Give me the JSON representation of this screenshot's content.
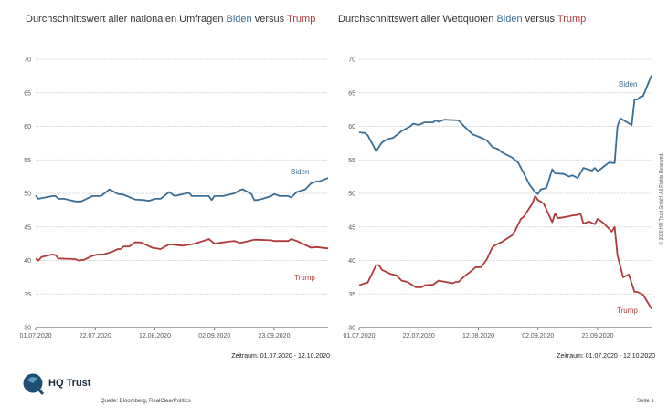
{
  "colors": {
    "biden": "#3b6e96",
    "trump": "#b03a3a",
    "grid": "#c8c8c8",
    "axis": "#555555"
  },
  "chart_data": [
    {
      "type": "line",
      "title": {
        "prefix": "Durchschnittswert aller nationalen Umfragen ",
        "biden": "Biden",
        "mid": " versus ",
        "trump": "Trump"
      },
      "ylim": [
        30,
        70
      ],
      "yticks": [
        30,
        35,
        40,
        45,
        50,
        55,
        60,
        65,
        70
      ],
      "xlim": [
        "2020-07-01",
        "2020-10-12"
      ],
      "xticks": [
        "01.07.2020",
        "22.07.2020",
        "12.08.2020",
        "02.09.2020",
        "23.09.2020"
      ],
      "grid": true,
      "period": "Zeitraum: 01.07.2020 - 12.10.2020",
      "series": [
        {
          "name": "Biden",
          "color": "#3b6e96",
          "points": [
            [
              "2020-07-01",
              49.7
            ],
            [
              "2020-07-02",
              49.2
            ],
            [
              "2020-07-07",
              49.6
            ],
            [
              "2020-07-08",
              49.6
            ],
            [
              "2020-07-09",
              49.2
            ],
            [
              "2020-07-11",
              49.2
            ],
            [
              "2020-07-15",
              48.8
            ],
            [
              "2020-07-17",
              48.8
            ],
            [
              "2020-07-21",
              49.6
            ],
            [
              "2020-07-24",
              49.6
            ],
            [
              "2020-07-27",
              50.6
            ],
            [
              "2020-07-30",
              49.9
            ],
            [
              "2020-08-01",
              49.8
            ],
            [
              "2020-08-05",
              49.1
            ],
            [
              "2020-08-08",
              49.0
            ],
            [
              "2020-08-10",
              48.9
            ],
            [
              "2020-08-12",
              49.2
            ],
            [
              "2020-08-14",
              49.2
            ],
            [
              "2020-08-17",
              50.2
            ],
            [
              "2020-08-19",
              49.6
            ],
            [
              "2020-08-24",
              50.1
            ],
            [
              "2020-08-25",
              49.6
            ],
            [
              "2020-08-31",
              49.6
            ],
            [
              "2020-09-01",
              49.0
            ],
            [
              "2020-09-02",
              49.6
            ],
            [
              "2020-09-05",
              49.6
            ],
            [
              "2020-09-09",
              50.0
            ],
            [
              "2020-09-11",
              50.5
            ],
            [
              "2020-09-12",
              50.6
            ],
            [
              "2020-09-15",
              49.9
            ],
            [
              "2020-09-16",
              49.0
            ],
            [
              "2020-09-17",
              49.0
            ],
            [
              "2020-09-19",
              49.2
            ],
            [
              "2020-09-22",
              49.6
            ],
            [
              "2020-09-23",
              49.9
            ],
            [
              "2020-09-25",
              49.6
            ],
            [
              "2020-09-28",
              49.6
            ],
            [
              "2020-09-29",
              49.4
            ],
            [
              "2020-10-01",
              50.2
            ],
            [
              "2020-10-04",
              50.6
            ],
            [
              "2020-10-06",
              51.5
            ],
            [
              "2020-10-08",
              51.8
            ],
            [
              "2020-10-09",
              51.8
            ],
            [
              "2020-10-12",
              52.3
            ]
          ]
        },
        {
          "name": "Trump",
          "color": "#b03a3a",
          "points": [
            [
              "2020-07-01",
              40.3
            ],
            [
              "2020-07-02",
              40.0
            ],
            [
              "2020-07-03",
              40.5
            ],
            [
              "2020-07-07",
              40.9
            ],
            [
              "2020-07-08",
              40.8
            ],
            [
              "2020-07-09",
              40.3
            ],
            [
              "2020-07-15",
              40.2
            ],
            [
              "2020-07-16",
              40.0
            ],
            [
              "2020-07-18",
              40.1
            ],
            [
              "2020-07-21",
              40.7
            ],
            [
              "2020-07-23",
              40.9
            ],
            [
              "2020-07-25",
              40.9
            ],
            [
              "2020-07-28",
              41.3
            ],
            [
              "2020-07-30",
              41.7
            ],
            [
              "2020-07-31",
              41.7
            ],
            [
              "2020-08-01",
              42.1
            ],
            [
              "2020-08-03",
              42.1
            ],
            [
              "2020-08-05",
              42.7
            ],
            [
              "2020-08-07",
              42.7
            ],
            [
              "2020-08-09",
              42.3
            ],
            [
              "2020-08-11",
              41.9
            ],
            [
              "2020-08-14",
              41.7
            ],
            [
              "2020-08-17",
              42.4
            ],
            [
              "2020-08-22",
              42.2
            ],
            [
              "2020-08-26",
              42.5
            ],
            [
              "2020-08-29",
              42.9
            ],
            [
              "2020-08-31",
              43.2
            ],
            [
              "2020-09-02",
              42.5
            ],
            [
              "2020-09-05",
              42.7
            ],
            [
              "2020-09-07",
              42.8
            ],
            [
              "2020-09-09",
              42.9
            ],
            [
              "2020-09-11",
              42.6
            ],
            [
              "2020-09-14",
              42.9
            ],
            [
              "2020-09-16",
              43.1
            ],
            [
              "2020-09-22",
              43.0
            ],
            [
              "2020-09-23",
              42.9
            ],
            [
              "2020-09-28",
              42.9
            ],
            [
              "2020-09-29",
              43.2
            ],
            [
              "2020-10-01",
              42.9
            ],
            [
              "2020-10-04",
              42.3
            ],
            [
              "2020-10-06",
              41.9
            ],
            [
              "2020-10-08",
              42.0
            ],
            [
              "2020-10-12",
              41.8
            ]
          ]
        }
      ]
    },
    {
      "type": "line",
      "title": {
        "prefix": "Durchschnittswert aller Wettquoten ",
        "biden": "Biden",
        "mid": " versus ",
        "trump": "Trump"
      },
      "ylim": [
        30,
        70
      ],
      "yticks": [
        30,
        35,
        40,
        45,
        50,
        55,
        60,
        65,
        70
      ],
      "xlim": [
        "2020-07-01",
        "2020-10-12"
      ],
      "xticks": [
        "01.07.2020",
        "22.07.2020",
        "12.08.2020",
        "02.09.2020",
        "23.09.2020"
      ],
      "grid": true,
      "period": "Zeitraum: 01.07.2020 - 12.10.2020",
      "series": [
        {
          "name": "Biden",
          "color": "#3b6e96",
          "points": [
            [
              "2020-07-01",
              59.1
            ],
            [
              "2020-07-03",
              59.0
            ],
            [
              "2020-07-04",
              58.7
            ],
            [
              "2020-07-07",
              56.3
            ],
            [
              "2020-07-09",
              57.6
            ],
            [
              "2020-07-11",
              58.1
            ],
            [
              "2020-07-13",
              58.3
            ],
            [
              "2020-07-16",
              59.3
            ],
            [
              "2020-07-19",
              60.0
            ],
            [
              "2020-07-20",
              60.4
            ],
            [
              "2020-07-22",
              60.2
            ],
            [
              "2020-07-24",
              60.6
            ],
            [
              "2020-07-27",
              60.6
            ],
            [
              "2020-07-28",
              60.9
            ],
            [
              "2020-07-29",
              60.7
            ],
            [
              "2020-07-31",
              61.0
            ],
            [
              "2020-08-05",
              60.9
            ],
            [
              "2020-08-07",
              60.0
            ],
            [
              "2020-08-10",
              58.8
            ],
            [
              "2020-08-13",
              58.3
            ],
            [
              "2020-08-15",
              57.9
            ],
            [
              "2020-08-17",
              56.9
            ],
            [
              "2020-08-19",
              56.6
            ],
            [
              "2020-08-20",
              56.2
            ],
            [
              "2020-08-24",
              55.3
            ],
            [
              "2020-08-26",
              54.6
            ],
            [
              "2020-08-28",
              53.0
            ],
            [
              "2020-08-30",
              51.3
            ],
            [
              "2020-09-01",
              50.2
            ],
            [
              "2020-09-02",
              49.9
            ],
            [
              "2020-09-03",
              50.6
            ],
            [
              "2020-09-05",
              50.8
            ],
            [
              "2020-09-07",
              53.6
            ],
            [
              "2020-09-08",
              53.0
            ],
            [
              "2020-09-11",
              52.9
            ],
            [
              "2020-09-13",
              52.5
            ],
            [
              "2020-09-14",
              52.7
            ],
            [
              "2020-09-15",
              52.5
            ],
            [
              "2020-09-16",
              52.3
            ],
            [
              "2020-09-18",
              53.8
            ],
            [
              "2020-09-21",
              53.4
            ],
            [
              "2020-09-22",
              53.8
            ],
            [
              "2020-09-23",
              53.3
            ],
            [
              "2020-09-24",
              53.6
            ],
            [
              "2020-09-27",
              54.6
            ],
            [
              "2020-09-29",
              54.5
            ],
            [
              "2020-09-30",
              60.0
            ],
            [
              "2020-10-01",
              61.2
            ],
            [
              "2020-10-05",
              60.2
            ],
            [
              "2020-10-06",
              64.0
            ],
            [
              "2020-10-07",
              64.0
            ],
            [
              "2020-10-08",
              64.4
            ],
            [
              "2020-10-09",
              64.5
            ],
            [
              "2020-10-12",
              67.6
            ]
          ]
        },
        {
          "name": "Trump",
          "color": "#b03a3a",
          "points": [
            [
              "2020-07-01",
              36.3
            ],
            [
              "2020-07-03",
              36.6
            ],
            [
              "2020-07-04",
              36.7
            ],
            [
              "2020-07-07",
              39.3
            ],
            [
              "2020-07-08",
              39.3
            ],
            [
              "2020-07-09",
              38.6
            ],
            [
              "2020-07-12",
              38.0
            ],
            [
              "2020-07-14",
              37.8
            ],
            [
              "2020-07-16",
              37.0
            ],
            [
              "2020-07-18",
              36.8
            ],
            [
              "2020-07-21",
              36.0
            ],
            [
              "2020-07-23",
              36.0
            ],
            [
              "2020-07-24",
              36.3
            ],
            [
              "2020-07-27",
              36.4
            ],
            [
              "2020-07-29",
              37.0
            ],
            [
              "2020-08-03",
              36.6
            ],
            [
              "2020-08-04",
              36.8
            ],
            [
              "2020-08-05",
              36.8
            ],
            [
              "2020-08-07",
              37.6
            ],
            [
              "2020-08-10",
              38.6
            ],
            [
              "2020-08-11",
              39.0
            ],
            [
              "2020-08-13",
              39.0
            ],
            [
              "2020-08-15",
              40.2
            ],
            [
              "2020-08-17",
              42.0
            ],
            [
              "2020-08-18",
              42.3
            ],
            [
              "2020-08-20",
              42.7
            ],
            [
              "2020-08-24",
              43.8
            ],
            [
              "2020-08-25",
              44.5
            ],
            [
              "2020-08-27",
              46.2
            ],
            [
              "2020-08-28",
              46.5
            ],
            [
              "2020-08-31",
              48.5
            ],
            [
              "2020-09-01",
              49.6
            ],
            [
              "2020-09-02",
              49.0
            ],
            [
              "2020-09-04",
              48.5
            ],
            [
              "2020-09-07",
              45.7
            ],
            [
              "2020-09-08",
              47.0
            ],
            [
              "2020-09-09",
              46.3
            ],
            [
              "2020-09-12",
              46.5
            ],
            [
              "2020-09-14",
              46.7
            ],
            [
              "2020-09-16",
              46.8
            ],
            [
              "2020-09-17",
              47.0
            ],
            [
              "2020-09-18",
              45.5
            ],
            [
              "2020-09-20",
              45.8
            ],
            [
              "2020-09-22",
              45.4
            ],
            [
              "2020-09-23",
              46.2
            ],
            [
              "2020-09-25",
              45.6
            ],
            [
              "2020-09-28",
              44.3
            ],
            [
              "2020-09-29",
              45.0
            ],
            [
              "2020-09-30",
              40.8
            ],
            [
              "2020-10-02",
              37.5
            ],
            [
              "2020-10-04",
              37.9
            ],
            [
              "2020-10-06",
              35.3
            ],
            [
              "2020-10-07",
              35.3
            ],
            [
              "2020-10-09",
              34.9
            ],
            [
              "2020-10-12",
              32.8
            ]
          ]
        }
      ]
    }
  ],
  "footer": {
    "brand": "HQ Trust",
    "source": "Quelle: Bloomberg, RealClearPolitics",
    "page": "Seite 1",
    "copyright": "© 2020 HQ Trust GmbH. All Rights Reserved."
  }
}
